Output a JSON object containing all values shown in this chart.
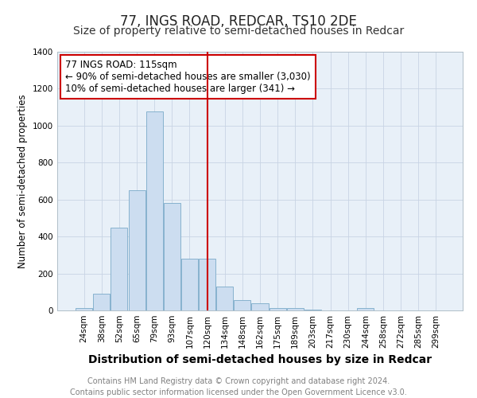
{
  "title": "77, INGS ROAD, REDCAR, TS10 2DE",
  "subtitle": "Size of property relative to semi-detached houses in Redcar",
  "xlabel": "Distribution of semi-detached houses by size in Redcar",
  "ylabel": "Number of semi-detached properties",
  "categories": [
    "24sqm",
    "38sqm",
    "52sqm",
    "65sqm",
    "79sqm",
    "93sqm",
    "107sqm",
    "120sqm",
    "134sqm",
    "148sqm",
    "162sqm",
    "175sqm",
    "189sqm",
    "203sqm",
    "217sqm",
    "230sqm",
    "244sqm",
    "258sqm",
    "272sqm",
    "285sqm",
    "299sqm"
  ],
  "values": [
    15,
    90,
    450,
    650,
    1075,
    580,
    280,
    280,
    130,
    55,
    40,
    15,
    15,
    5,
    0,
    0,
    15,
    0,
    0,
    0,
    0
  ],
  "bar_color": "#ccddf0",
  "bar_edgecolor": "#7aaac8",
  "vline_x_index": 7,
  "vline_color": "#cc0000",
  "annotation_title": "77 INGS ROAD: 115sqm",
  "annotation_line1": "← 90% of semi-detached houses are smaller (3,030)",
  "annotation_line2": "10% of semi-detached houses are larger (341) →",
  "annotation_box_edgecolor": "#cc0000",
  "ylim": [
    0,
    1400
  ],
  "yticks": [
    0,
    200,
    400,
    600,
    800,
    1000,
    1200,
    1400
  ],
  "footer_line1": "Contains HM Land Registry data © Crown copyright and database right 2024.",
  "footer_line2": "Contains public sector information licensed under the Open Government Licence v3.0.",
  "title_fontsize": 12,
  "subtitle_fontsize": 10,
  "xlabel_fontsize": 10,
  "ylabel_fontsize": 8.5,
  "tick_fontsize": 7.5,
  "annotation_fontsize": 8.5,
  "footer_fontsize": 7,
  "background_color": "#ffffff",
  "plot_bg_color": "#e8f0f8",
  "grid_color": "#c8d4e4"
}
